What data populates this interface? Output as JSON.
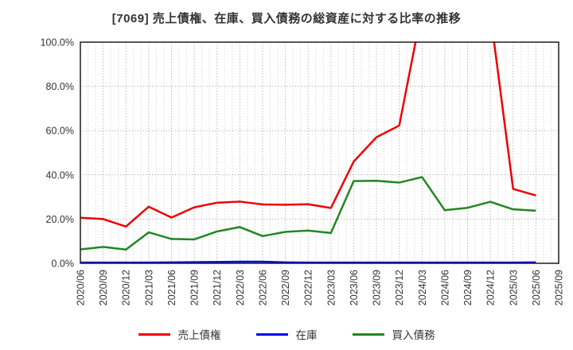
{
  "chart_data": {
    "type": "line",
    "title": "[7069]  売上債権、在庫、買入債務の総資産に対する比率の推移",
    "categories": [
      "2020/06",
      "2020/09",
      "2020/12",
      "2021/03",
      "2021/06",
      "2021/09",
      "2021/12",
      "2022/03",
      "2022/06",
      "2022/09",
      "2022/12",
      "2023/03",
      "2023/06",
      "2023/09",
      "2023/12",
      "2024/03",
      "2024/06",
      "2024/09",
      "2024/12",
      "2025/03",
      "2025/06",
      "2025/09"
    ],
    "ylim": [
      0,
      100
    ],
    "yticks": [
      {
        "value": 0,
        "label": "0.0%"
      },
      {
        "value": 20,
        "label": "20.0%"
      },
      {
        "value": 40,
        "label": "40.0%"
      },
      {
        "value": 60,
        "label": "60.0%"
      },
      {
        "value": 80,
        "label": "80.0%"
      },
      {
        "value": 100,
        "label": "100.0%"
      }
    ],
    "grid": "dotted, vertical major per quarter with 2 monthly minors, horizontal every 20%",
    "legend_position": "bottom center",
    "series": [
      {
        "name": "売上債権",
        "color": "#ee0000",
        "values": [
          20.6,
          20.0,
          16.6,
          25.6,
          20.7,
          25.3,
          27.4,
          27.9,
          26.6,
          26.5,
          26.7,
          25.0,
          46.0,
          57.0,
          62.3,
          115.0,
          118.0,
          118.0,
          113.0,
          33.6,
          30.7
        ],
        "offscale_note": "2024/03-2024/12 exceeds 100% and is clipped at top of plot"
      },
      {
        "name": "在庫",
        "color": "#0000ee",
        "values": [
          0.3,
          0.3,
          0.3,
          0.3,
          0.4,
          0.5,
          0.6,
          0.7,
          0.7,
          0.4,
          0.3,
          0.3,
          0.3,
          0.3,
          0.3,
          0.3,
          0.3,
          0.3,
          0.3,
          0.3,
          0.4
        ]
      },
      {
        "name": "買入債務",
        "color": "#218721",
        "values": [
          6.3,
          7.4,
          6.2,
          14.0,
          11.0,
          10.8,
          14.4,
          16.4,
          12.3,
          14.2,
          14.8,
          13.7,
          37.2,
          37.3,
          36.5,
          39.0,
          24.0,
          25.1,
          27.8,
          24.4,
          23.8
        ]
      }
    ],
    "plot_frame_color": "#2b2b2b",
    "grid_major_color": "#9a9a9a",
    "grid_minor_color": "#c9c9c9",
    "tick_label_color": "#333333"
  }
}
